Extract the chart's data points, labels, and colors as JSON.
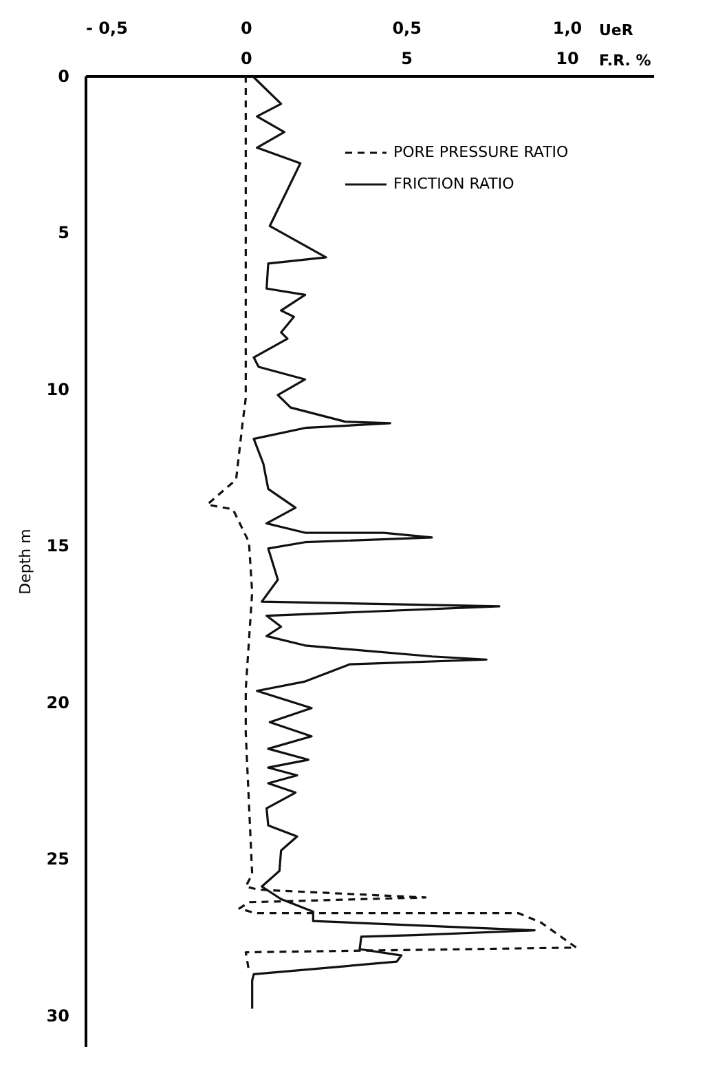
{
  "chart_data": {
    "type": "line",
    "xlabel": "UeR",
    "x2label": "F.R. %",
    "ylabel": "Depth m",
    "xlim": [
      -0.5,
      1.27
    ],
    "xticks": [
      {
        "value": -0.5,
        "label": "- 0,5"
      },
      0,
      {
        "value": 0.5,
        "label": "0,5"
      },
      {
        "value": 1,
        "label": "1,0"
      }
    ],
    "x2lim": [
      -5,
      12.7
    ],
    "x2ticks": [
      0,
      5,
      10
    ],
    "ylim": [
      31,
      0
    ],
    "yticks": [
      0,
      5,
      10,
      15,
      20,
      25,
      30
    ],
    "legend": "top right",
    "grid": false,
    "marker": "none",
    "series": [
      {
        "name": "PORE PRESSURE RATIO",
        "color": "#111111",
        "line_style": "dashed",
        "x": [
          0,
          0,
          -0.01,
          -0.03,
          -0.12,
          -0.04,
          0.01,
          0.02,
          0,
          0,
          0.02,
          0,
          0.04,
          0.56,
          0.01,
          -0.02,
          0.03,
          0.85,
          0.92,
          1.03,
          0,
          0.01
        ],
        "values": [
          0,
          10.3,
          11.1,
          12.9,
          13.7,
          13.85,
          14.9,
          16.5,
          19.6,
          21,
          25.5,
          25.9,
          26,
          26.25,
          26.4,
          26.6,
          26.75,
          26.75,
          27.05,
          27.85,
          28,
          28.6
        ]
      },
      {
        "name": "FRICTION RATIO",
        "color": "#111111",
        "line_style": "solid",
        "axis": "x2",
        "x": [
          0.2,
          1.1,
          0.35,
          1.2,
          0.35,
          1.7,
          0.75,
          2.5,
          0.7,
          0.65,
          1.85,
          1.1,
          1.5,
          1.1,
          1.3,
          0.25,
          0.4,
          1.85,
          1,
          1.4,
          3.1,
          4.5,
          1.85,
          0.25,
          0.55,
          0.7,
          1.55,
          0.65,
          1.85,
          4.3,
          5.8,
          1.85,
          0.7,
          1,
          0.5,
          7.9,
          0.65,
          1.1,
          0.65,
          1.85,
          5.8,
          7.5,
          3.25,
          1.85,
          0.35,
          2.05,
          0.75,
          2.05,
          0.7,
          1.95,
          0.7,
          1.6,
          0.7,
          1.55,
          0.65,
          0.7,
          1.6,
          1.1,
          1.05,
          0.5,
          1.1,
          2.1,
          2.1,
          9,
          5.25,
          3.6,
          3.55,
          4.85,
          4.7,
          0.25,
          0.2,
          0.2
        ],
        "values": [
          0,
          0.9,
          1.3,
          1.8,
          2.3,
          2.8,
          4.8,
          5.8,
          6,
          6.8,
          7,
          7.5,
          7.7,
          8.2,
          8.4,
          9,
          9.3,
          9.7,
          10.2,
          10.6,
          11.05,
          11.1,
          11.25,
          11.6,
          12.4,
          13.2,
          13.8,
          14.3,
          14.6,
          14.6,
          14.75,
          14.9,
          15.1,
          16.1,
          16.8,
          16.95,
          17.25,
          17.6,
          17.9,
          18.2,
          18.55,
          18.65,
          18.8,
          19.35,
          19.65,
          20.2,
          20.65,
          21.1,
          21.5,
          21.85,
          22.1,
          22.35,
          22.6,
          22.9,
          23.4,
          23.95,
          24.3,
          24.75,
          25.4,
          25.9,
          26.3,
          26.7,
          27,
          27.3,
          27.45,
          27.5,
          27.9,
          28.1,
          28.3,
          28.7,
          28.9,
          29.8
        ]
      }
    ]
  }
}
